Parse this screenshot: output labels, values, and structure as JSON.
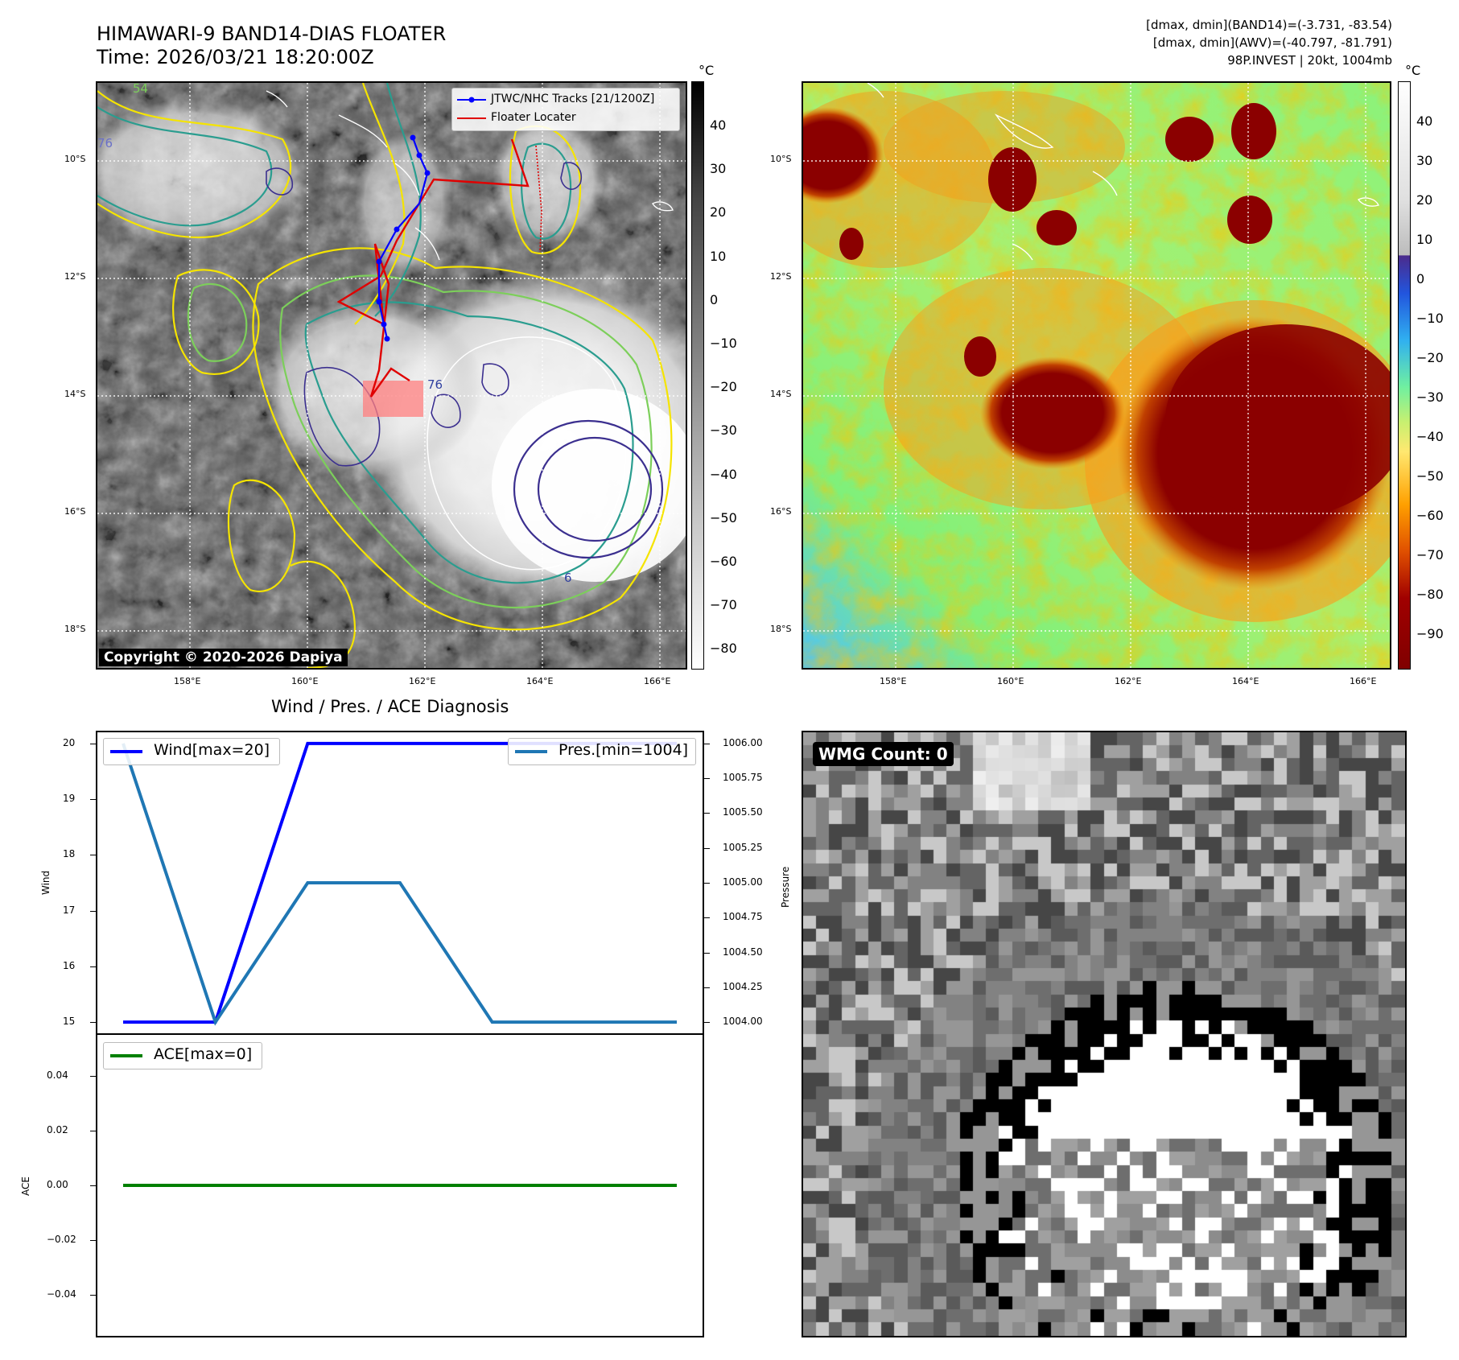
{
  "header": {
    "title_line1": "HIMAWARI-9 BAND14-DIAS FLOATER",
    "title_line2": "Time: 2026/03/21 18:20:00Z",
    "info_line1": "[dmax, dmin](BAND14)=(-3.731, -83.54)",
    "info_line2": "[dmax, dmin](AWV)=(-40.797, -81.791)",
    "info_line3": "98P.INVEST | 20kt, 1004mb"
  },
  "map": {
    "lat_labels": [
      "10°S",
      "12°S",
      "14°S",
      "16°S",
      "18°S"
    ],
    "lon_labels": [
      "158°E",
      "160°E",
      "162°E",
      "164°E",
      "166°E"
    ],
    "copyright": "Copyright © 2020-2026 Dapiya",
    "legend": {
      "track_label": "JTWC/NHC Tracks [21/1200Z]",
      "floater_label": "Floater Locater"
    },
    "contour_labels": [
      "54",
      "76",
      "76",
      "6"
    ]
  },
  "colorbar_left": {
    "unit": "°C",
    "ticks": [
      "40",
      "30",
      "20",
      "10",
      "0",
      "−10",
      "−20",
      "−30",
      "−40",
      "−50",
      "−60",
      "−70",
      "−80"
    ]
  },
  "colorbar_right": {
    "unit": "°C",
    "ticks": [
      "40",
      "30",
      "20",
      "10",
      "0",
      "−10",
      "−20",
      "−30",
      "−40",
      "−50",
      "−60",
      "−70",
      "−80",
      "−90"
    ]
  },
  "wmg_panel": {
    "label": "WMG Count: 0"
  },
  "chart_data": [
    {
      "type": "line",
      "title": "Wind / Pres. / ACE Diagnosis",
      "x": [
        0,
        1,
        2,
        3,
        4,
        5,
        6
      ],
      "series": [
        {
          "name": "Wind[max=20]",
          "axis": "left",
          "color": "#0000ff",
          "values": [
            15,
            15,
            20,
            20,
            20,
            20,
            20
          ]
        },
        {
          "name": "Pres.[min=1004]",
          "axis": "right",
          "color": "#1f77b4",
          "values": [
            1006.0,
            1004.0,
            1005.0,
            1005.0,
            1004.0,
            1004.0,
            1004.0
          ]
        }
      ],
      "ylabel_left": "Wind",
      "ylabel_right": "Pressure",
      "ylim_left": [
        14.8,
        20.2
      ],
      "ylim_right": [
        1003.92,
        1006.08
      ],
      "yticks_left": [
        "20",
        "19",
        "18",
        "17",
        "16",
        "15"
      ],
      "yticks_right": [
        "1006.00",
        "1005.75",
        "1005.50",
        "1005.25",
        "1005.00",
        "1004.75",
        "1004.50",
        "1004.25",
        "1004.00"
      ]
    },
    {
      "type": "line",
      "x": [
        0,
        1,
        2,
        3,
        4,
        5,
        6
      ],
      "series": [
        {
          "name": "ACE[max=0]",
          "color": "#008000",
          "values": [
            0,
            0,
            0,
            0,
            0,
            0,
            0
          ]
        }
      ],
      "ylabel": "ACE",
      "ylim": [
        -0.055,
        0.055
      ],
      "yticks": [
        "0.04",
        "0.02",
        "0.00",
        "−0.02",
        "−0.04"
      ]
    }
  ]
}
